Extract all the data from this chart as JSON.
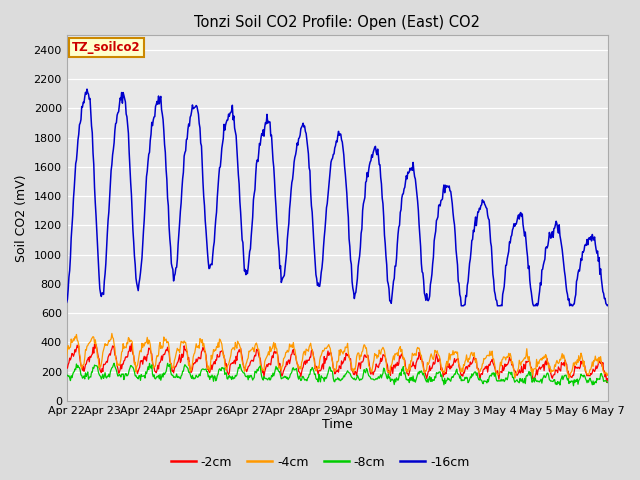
{
  "title": "Tonzi Soil CO2 Profile: Open (East) CO2",
  "ylabel": "Soil CO2 (mV)",
  "xlabel": "Time",
  "ylim": [
    0,
    2500
  ],
  "yticks": [
    0,
    200,
    400,
    600,
    800,
    1000,
    1200,
    1400,
    1600,
    1800,
    2000,
    2200,
    2400
  ],
  "fig_bg": "#dcdcdc",
  "plot_bg": "#e8e8e8",
  "legend_label_box": "TZ_soilco2",
  "legend_label_box_bg": "#ffffcc",
  "legend_label_box_border": "#cc8800",
  "series": [
    {
      "label": "-2cm",
      "color": "#ff0000"
    },
    {
      "label": "-4cm",
      "color": "#ff9900"
    },
    {
      "label": "-8cm",
      "color": "#00cc00"
    },
    {
      "label": "-16cm",
      "color": "#0000cc"
    }
  ],
  "tick_labels": [
    "Apr 22",
    "Apr 23",
    "Apr 24",
    "Apr 25",
    "Apr 26",
    "Apr 27",
    "Apr 28",
    "Apr 29",
    "Apr 30",
    "May 1",
    "May 2",
    "May 3",
    "May 4",
    "May 5",
    "May 6",
    "May 7"
  ],
  "n_days": 15
}
